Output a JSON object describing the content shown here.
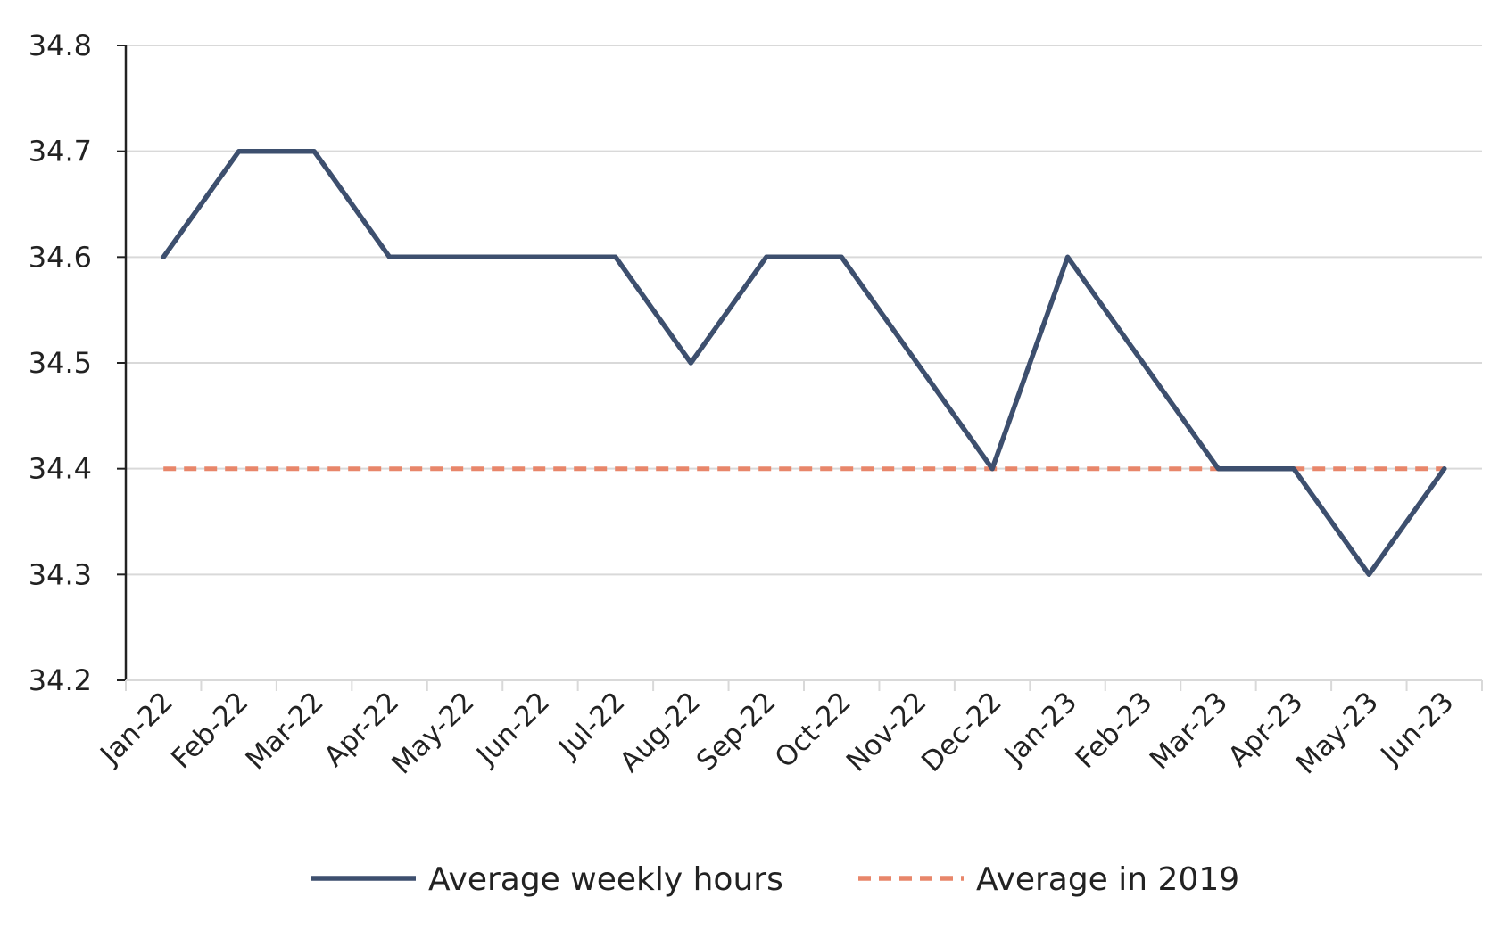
{
  "chart_data": {
    "type": "line",
    "categories": [
      "Jan-22",
      "Feb-22",
      "Mar-22",
      "Apr-22",
      "May-22",
      "Jun-22",
      "Jul-22",
      "Aug-22",
      "Sep-22",
      "Oct-22",
      "Nov-22",
      "Dec-22",
      "Jan-23",
      "Feb-23",
      "Mar-23",
      "Apr-23",
      "May-23",
      "Jun-23"
    ],
    "series": [
      {
        "name": "Average weekly hours",
        "color": "#3d4f6e",
        "style": "solid",
        "values": [
          34.6,
          34.7,
          34.7,
          34.6,
          34.6,
          34.6,
          34.6,
          34.5,
          34.6,
          34.6,
          34.5,
          34.4,
          34.6,
          34.5,
          34.4,
          34.4,
          34.3,
          34.4
        ]
      },
      {
        "name": "Average in 2019",
        "color": "#e8866a",
        "style": "dashed",
        "values": [
          34.4,
          34.4,
          34.4,
          34.4,
          34.4,
          34.4,
          34.4,
          34.4,
          34.4,
          34.4,
          34.4,
          34.4,
          34.4,
          34.4,
          34.4,
          34.4,
          34.4,
          34.4
        ]
      }
    ],
    "ylim": [
      34.2,
      34.8
    ],
    "yticks": [
      "34.2",
      "34.3",
      "34.4",
      "34.5",
      "34.6",
      "34.7",
      "34.8"
    ],
    "grid": true,
    "legend_position": "bottom-center"
  }
}
